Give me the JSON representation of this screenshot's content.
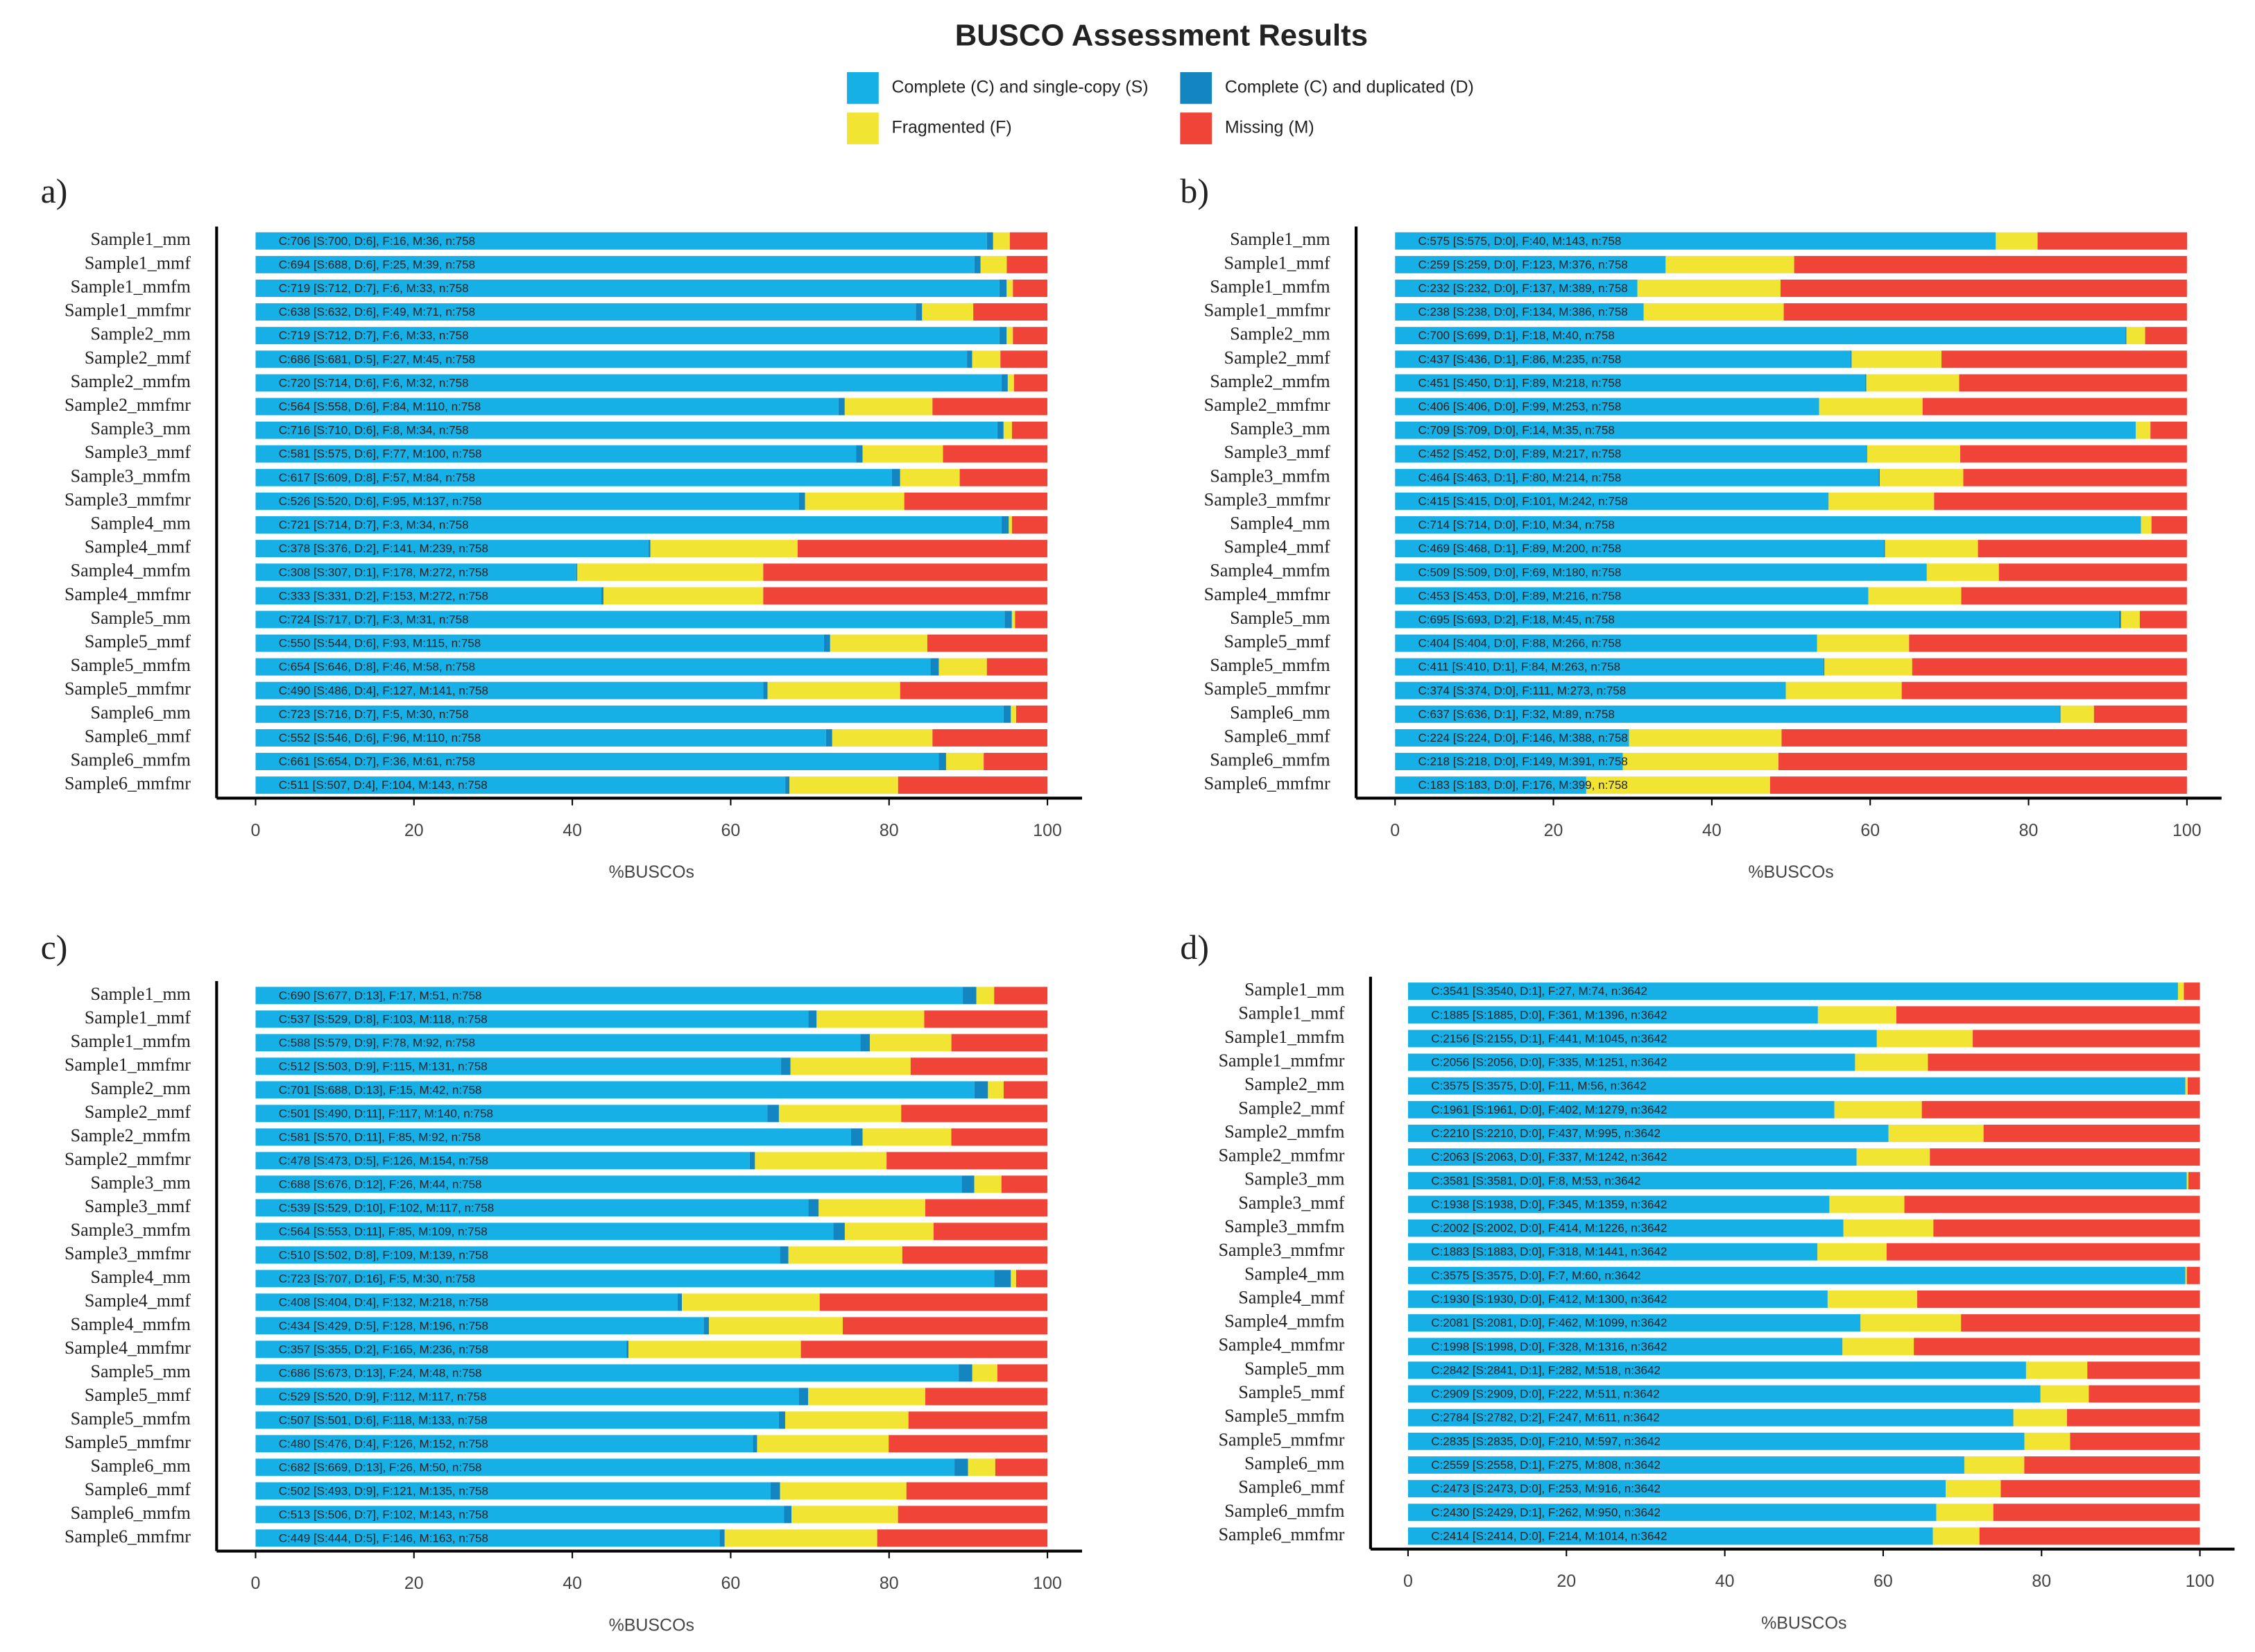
{
  "title": "BUSCO Assessment Results",
  "legend": [
    {
      "name": "Complete (C) and single-copy (S)",
      "color": "#17b0e6"
    },
    {
      "name": "Complete (C) and duplicated (D)",
      "color": "#1386c2"
    },
    {
      "name": "Fragmented (F)",
      "color": "#f1e433"
    },
    {
      "name": "Missing (M)",
      "color": "#f04438"
    }
  ],
  "chart_data": [
    {
      "type": "bar",
      "panel_label": "a)",
      "xlabel": "%BUSCOs",
      "xlim": [
        0,
        100
      ],
      "xticks": [
        0,
        20,
        40,
        60,
        80,
        100
      ],
      "categories": [
        "Sample1_mm",
        "Sample1_mmf",
        "Sample1_mmfm",
        "Sample1_mmfmr",
        "Sample2_mm",
        "Sample2_mmf",
        "Sample2_mmfm",
        "Sample2_mmfmr",
        "Sample3_mm",
        "Sample3_mmf",
        "Sample3_mmfm",
        "Sample3_mmfmr",
        "Sample4_mm",
        "Sample4_mmf",
        "Sample4_mmfm",
        "Sample4_mmfmr",
        "Sample5_mm",
        "Sample5_mmf",
        "Sample5_mmfm",
        "Sample5_mmfmr",
        "Sample6_mm",
        "Sample6_mmf",
        "Sample6_mmfm",
        "Sample6_mmfmr"
      ],
      "series": [
        {
          "values": [
            92.35,
            90.77,
            93.93,
            83.38,
            93.93,
            89.84,
            94.2,
            73.61,
            93.67,
            75.86,
            80.34,
            68.6,
            94.2,
            49.6,
            40.5,
            43.67,
            94.59,
            71.77,
            85.22,
            64.12,
            94.46,
            72.03,
            86.28,
            66.89
          ]
        },
        {
          "values": [
            0.79,
            0.79,
            0.92,
            0.79,
            0.92,
            0.66,
            0.79,
            0.79,
            0.79,
            0.79,
            1.06,
            0.79,
            0.92,
            0.26,
            0.13,
            0.26,
            0.92,
            0.79,
            1.06,
            0.53,
            0.92,
            0.79,
            0.92,
            0.53
          ]
        },
        {
          "values": [
            2.11,
            3.3,
            0.79,
            6.46,
            0.79,
            3.56,
            0.79,
            11.08,
            1.06,
            10.16,
            7.52,
            12.53,
            0.4,
            18.6,
            23.48,
            20.18,
            0.4,
            12.27,
            6.07,
            16.75,
            0.66,
            12.66,
            4.75,
            13.72
          ]
        },
        {
          "values": [
            4.75,
            5.15,
            4.35,
            9.37,
            4.35,
            5.94,
            4.22,
            14.51,
            4.49,
            13.19,
            11.08,
            18.07,
            4.49,
            31.53,
            35.88,
            35.88,
            4.09,
            15.17,
            7.65,
            18.6,
            3.96,
            14.51,
            8.05,
            18.87
          ]
        }
      ],
      "bar_labels": [
        "C:706 [S:700, D:6], F:16, M:36, n:758",
        "C:694 [S:688, D:6], F:25, M:39, n:758",
        "C:719 [S:712, D:7], F:6, M:33, n:758",
        "C:638 [S:632, D:6], F:49, M:71, n:758",
        "C:719 [S:712, D:7], F:6, M:33, n:758",
        "C:686 [S:681, D:5], F:27, M:45, n:758",
        "C:720 [S:714, D:6], F:6, M:32, n:758",
        "C:564 [S:558, D:6], F:84, M:110, n:758",
        "C:716 [S:710, D:6], F:8, M:34, n:758",
        "C:581 [S:575, D:6], F:77, M:100, n:758",
        "C:617 [S:609, D:8], F:57, M:84, n:758",
        "C:526 [S:520, D:6], F:95, M:137, n:758",
        "C:721 [S:714, D:7], F:3, M:34, n:758",
        "C:378 [S:376, D:2], F:141, M:239, n:758",
        "C:308 [S:307, D:1], F:178, M:272, n:758",
        "C:333 [S:331, D:2], F:153, M:272, n:758",
        "C:724 [S:717, D:7], F:3, M:31, n:758",
        "C:550 [S:544, D:6], F:93, M:115, n:758",
        "C:654 [S:646, D:8], F:46, M:58, n:758",
        "C:490 [S:486, D:4], F:127, M:141, n:758",
        "C:723 [S:716, D:7], F:5, M:30, n:758",
        "C:552 [S:546, D:6], F:96, M:110, n:758",
        "C:661 [S:654, D:7], F:36, M:61, n:758",
        "C:511 [S:507, D:4], F:104, M:143, n:758"
      ]
    },
    {
      "type": "bar",
      "panel_label": "b)",
      "xlabel": "%BUSCOs",
      "xlim": [
        0,
        100
      ],
      "xticks": [
        0,
        20,
        40,
        60,
        80,
        100
      ],
      "categories": [
        "Sample1_mm",
        "Sample1_mmf",
        "Sample1_mmfm",
        "Sample1_mmfmr",
        "Sample2_mm",
        "Sample2_mmf",
        "Sample2_mmfm",
        "Sample2_mmfmr",
        "Sample3_mm",
        "Sample3_mmf",
        "Sample3_mmfm",
        "Sample3_mmfmr",
        "Sample4_mm",
        "Sample4_mmf",
        "Sample4_mmfm",
        "Sample4_mmfmr",
        "Sample5_mm",
        "Sample5_mmf",
        "Sample5_mmfm",
        "Sample5_mmfmr",
        "Sample6_mm",
        "Sample6_mmf",
        "Sample6_mmfm",
        "Sample6_mmfmr"
      ],
      "series": [
        {
          "values": [
            75.86,
            34.17,
            30.61,
            31.4,
            92.22,
            57.52,
            59.37,
            53.56,
            93.54,
            59.63,
            61.08,
            54.75,
            94.2,
            61.74,
            67.15,
            59.76,
            91.42,
            53.3,
            54.09,
            49.34,
            83.91,
            29.55,
            28.76,
            24.14
          ]
        },
        {
          "values": [
            0,
            0,
            0,
            0,
            0.13,
            0.13,
            0.13,
            0,
            0,
            0,
            0.13,
            0,
            0,
            0.13,
            0,
            0,
            0.26,
            0,
            0.13,
            0,
            0.13,
            0,
            0,
            0
          ]
        },
        {
          "values": [
            5.28,
            16.23,
            18.07,
            17.68,
            2.37,
            11.35,
            11.74,
            13.06,
            1.85,
            11.74,
            10.55,
            13.32,
            1.32,
            11.74,
            9.1,
            11.74,
            2.37,
            11.61,
            11.08,
            14.64,
            4.22,
            19.26,
            19.66,
            23.22
          ]
        },
        {
          "values": [
            18.87,
            49.6,
            51.32,
            50.92,
            5.28,
            31,
            28.76,
            33.38,
            4.62,
            28.63,
            28.23,
            31.93,
            4.49,
            26.39,
            23.75,
            28.5,
            5.94,
            35.09,
            34.7,
            36.02,
            11.74,
            51.19,
            51.58,
            52.64
          ]
        }
      ],
      "bar_labels": [
        "C:575 [S:575, D:0], F:40, M:143, n:758",
        "C:259 [S:259, D:0], F:123, M:376, n:758",
        "C:232 [S:232, D:0], F:137, M:389, n:758",
        "C:238 [S:238, D:0], F:134, M:386, n:758",
        "C:700 [S:699, D:1], F:18, M:40, n:758",
        "C:437 [S:436, D:1], F:86, M:235, n:758",
        "C:451 [S:450, D:1], F:89, M:218, n:758",
        "C:406 [S:406, D:0], F:99, M:253, n:758",
        "C:709 [S:709, D:0], F:14, M:35, n:758",
        "C:452 [S:452, D:0], F:89, M:217, n:758",
        "C:464 [S:463, D:1], F:80, M:214, n:758",
        "C:415 [S:415, D:0], F:101, M:242, n:758",
        "C:714 [S:714, D:0], F:10, M:34, n:758",
        "C:469 [S:468, D:1], F:89, M:200, n:758",
        "C:509 [S:509, D:0], F:69, M:180, n:758",
        "C:453 [S:453, D:0], F:89, M:216, n:758",
        "C:695 [S:693, D:2], F:18, M:45, n:758",
        "C:404 [S:404, D:0], F:88, M:266, n:758",
        "C:411 [S:410, D:1], F:84, M:263, n:758",
        "C:374 [S:374, D:0], F:111, M:273, n:758",
        "C:637 [S:636, D:1], F:32, M:89, n:758",
        "C:224 [S:224, D:0], F:146, M:388, n:758",
        "C:218 [S:218, D:0], F:149, M:391, n:758",
        "C:183 [S:183, D:0], F:176, M:399, n:758"
      ]
    },
    {
      "type": "bar",
      "panel_label": "c)",
      "xlabel": "%BUSCOs",
      "xlim": [
        0,
        100
      ],
      "xticks": [
        0,
        20,
        40,
        60,
        80,
        100
      ],
      "categories": [
        "Sample1_mm",
        "Sample1_mmf",
        "Sample1_mmfm",
        "Sample1_mmfmr",
        "Sample2_mm",
        "Sample2_mmf",
        "Sample2_mmfm",
        "Sample2_mmfmr",
        "Sample3_mm",
        "Sample3_mmf",
        "Sample3_mmfm",
        "Sample3_mmfmr",
        "Sample4_mm",
        "Sample4_mmf",
        "Sample4_mmfm",
        "Sample4_mmfmr",
        "Sample5_mm",
        "Sample5_mmf",
        "Sample5_mmfm",
        "Sample5_mmfmr",
        "Sample6_mm",
        "Sample6_mmf",
        "Sample6_mmfm",
        "Sample6_mmfmr"
      ],
      "series": [
        {
          "values": [
            89.31,
            69.79,
            76.39,
            66.36,
            90.77,
            64.64,
            75.2,
            62.4,
            89.18,
            69.79,
            72.96,
            66.23,
            93.27,
            53.3,
            56.6,
            46.83,
            88.79,
            68.6,
            66.09,
            62.8,
            88.26,
            65.04,
            66.75,
            58.58
          ]
        },
        {
          "values": [
            1.72,
            1.06,
            1.19,
            1.19,
            1.72,
            1.45,
            1.45,
            0.66,
            1.58,
            1.32,
            1.45,
            1.06,
            2.11,
            0.53,
            0.66,
            0.26,
            1.72,
            1.19,
            0.79,
            0.53,
            1.72,
            1.19,
            0.92,
            0.66
          ]
        },
        {
          "values": [
            2.24,
            13.59,
            10.29,
            15.17,
            1.98,
            15.44,
            11.21,
            16.62,
            3.43,
            13.46,
            11.21,
            14.38,
            0.66,
            17.41,
            16.89,
            21.77,
            3.17,
            14.78,
            15.57,
            16.62,
            3.43,
            15.96,
            13.46,
            19.26
          ]
        },
        {
          "values": [
            6.73,
            15.57,
            12.14,
            17.28,
            5.54,
            18.47,
            12.14,
            20.32,
            5.8,
            15.44,
            14.38,
            18.34,
            3.96,
            28.76,
            25.86,
            31.13,
            6.33,
            15.44,
            17.55,
            20.05,
            6.6,
            17.81,
            18.87,
            21.5
          ]
        }
      ],
      "bar_labels": [
        "C:690 [S:677, D:13], F:17, M:51, n:758",
        "C:537 [S:529, D:8], F:103, M:118, n:758",
        "C:588 [S:579, D:9], F:78, M:92, n:758",
        "C:512 [S:503, D:9], F:115, M:131, n:758",
        "C:701 [S:688, D:13], F:15, M:42, n:758",
        "C:501 [S:490, D:11], F:117, M:140, n:758",
        "C:581 [S:570, D:11], F:85, M:92, n:758",
        "C:478 [S:473, D:5], F:126, M:154, n:758",
        "C:688 [S:676, D:12], F:26, M:44, n:758",
        "C:539 [S:529, D:10], F:102, M:117, n:758",
        "C:564 [S:553, D:11], F:85, M:109, n:758",
        "C:510 [S:502, D:8], F:109, M:139, n:758",
        "C:723 [S:707, D:16], F:5, M:30, n:758",
        "C:408 [S:404, D:4], F:132, M:218, n:758",
        "C:434 [S:429, D:5], F:128, M:196, n:758",
        "C:357 [S:355, D:2], F:165, M:236, n:758",
        "C:686 [S:673, D:13], F:24, M:48, n:758",
        "C:529 [S:520, D:9], F:112, M:117, n:758",
        "C:507 [S:501, D:6], F:118, M:133, n:758",
        "C:480 [S:476, D:4], F:126, M:152, n:758",
        "C:682 [S:669, D:13], F:26, M:50, n:758",
        "C:502 [S:493, D:9], F:121, M:135, n:758",
        "C:513 [S:506, D:7], F:102, M:143, n:758",
        "C:449 [S:444, D:5], F:146, M:163, n:758"
      ]
    },
    {
      "type": "bar",
      "panel_label": "d)",
      "xlabel": "%BUSCOs",
      "xlim": [
        0,
        100
      ],
      "xticks": [
        0,
        20,
        40,
        60,
        80,
        100
      ],
      "categories": [
        "Sample1_mm",
        "Sample1_mmf",
        "Sample1_mmfm",
        "Sample1_mmfmr",
        "Sample2_mm",
        "Sample2_mmf",
        "Sample2_mmfm",
        "Sample2_mmfmr",
        "Sample3_mm",
        "Sample3_mmf",
        "Sample3_mmfm",
        "Sample3_mmfmr",
        "Sample4_mm",
        "Sample4_mmf",
        "Sample4_mmfm",
        "Sample4_mmfmr",
        "Sample5_mm",
        "Sample5_mmf",
        "Sample5_mmfm",
        "Sample5_mmfmr",
        "Sample6_mm",
        "Sample6_mmf",
        "Sample6_mmfm",
        "Sample6_mmfmr"
      ],
      "series": [
        {
          "values": [
            97.2,
            51.76,
            59.17,
            56.45,
            98.16,
            53.84,
            60.68,
            56.65,
            98.33,
            53.21,
            54.97,
            51.7,
            98.16,
            52.99,
            57.14,
            54.86,
            78.01,
            79.87,
            76.39,
            77.84,
            70.24,
            67.9,
            66.69,
            66.28
          ]
        },
        {
          "values": [
            0.03,
            0,
            0.03,
            0,
            0,
            0,
            0,
            0,
            0,
            0,
            0,
            0,
            0,
            0,
            0,
            0,
            0.03,
            0,
            0.05,
            0,
            0.03,
            0,
            0.03,
            0
          ]
        },
        {
          "values": [
            0.74,
            9.91,
            12.11,
            9.2,
            0.3,
            11.04,
            12,
            9.25,
            0.22,
            9.47,
            11.37,
            8.73,
            0.19,
            11.31,
            12.69,
            9.01,
            7.74,
            6.1,
            6.78,
            5.77,
            7.55,
            6.95,
            7.19,
            5.88
          ]
        },
        {
          "values": [
            2.03,
            38.33,
            28.69,
            34.35,
            1.54,
            35.12,
            27.32,
            34.1,
            1.46,
            37.31,
            33.66,
            39.57,
            1.65,
            35.7,
            30.18,
            36.13,
            14.22,
            14.03,
            16.78,
            16.39,
            22.19,
            25.15,
            26.08,
            27.84
          ]
        }
      ],
      "bar_labels": [
        "C:3541 [S:3540, D:1], F:27, M:74, n:3642",
        "C:1885 [S:1885, D:0], F:361, M:1396, n:3642",
        "C:2156 [S:2155, D:1], F:441, M:1045, n:3642",
        "C:2056 [S:2056, D:0], F:335, M:1251, n:3642",
        "C:3575 [S:3575, D:0], F:11, M:56, n:3642",
        "C:1961 [S:1961, D:0], F:402, M:1279, n:3642",
        "C:2210 [S:2210, D:0], F:437, M:995, n:3642",
        "C:2063 [S:2063, D:0], F:337, M:1242, n:3642",
        "C:3581 [S:3581, D:0], F:8, M:53, n:3642",
        "C:1938 [S:1938, D:0], F:345, M:1359, n:3642",
        "C:2002 [S:2002, D:0], F:414, M:1226, n:3642",
        "C:1883 [S:1883, D:0], F:318, M:1441, n:3642",
        "C:3575 [S:3575, D:0], F:7, M:60, n:3642",
        "C:1930 [S:1930, D:0], F:412, M:1300, n:3642",
        "C:2081 [S:2081, D:0], F:462, M:1099, n:3642",
        "C:1998 [S:1998, D:0], F:328, M:1316, n:3642",
        "C:2842 [S:2841, D:1], F:282, M:518, n:3642",
        "C:2909 [S:2909, D:0], F:222, M:511, n:3642",
        "C:2784 [S:2782, D:2], F:247, M:611, n:3642",
        "C:2835 [S:2835, D:0], F:210, M:597, n:3642",
        "C:2559 [S:2558, D:1], F:275, M:808, n:3642",
        "C:2473 [S:2473, D:0], F:253, M:916, n:3642",
        "C:2430 [S:2429, D:1], F:262, M:950, n:3642",
        "C:2414 [S:2414, D:0], F:214, M:1014, n:3642"
      ]
    }
  ]
}
